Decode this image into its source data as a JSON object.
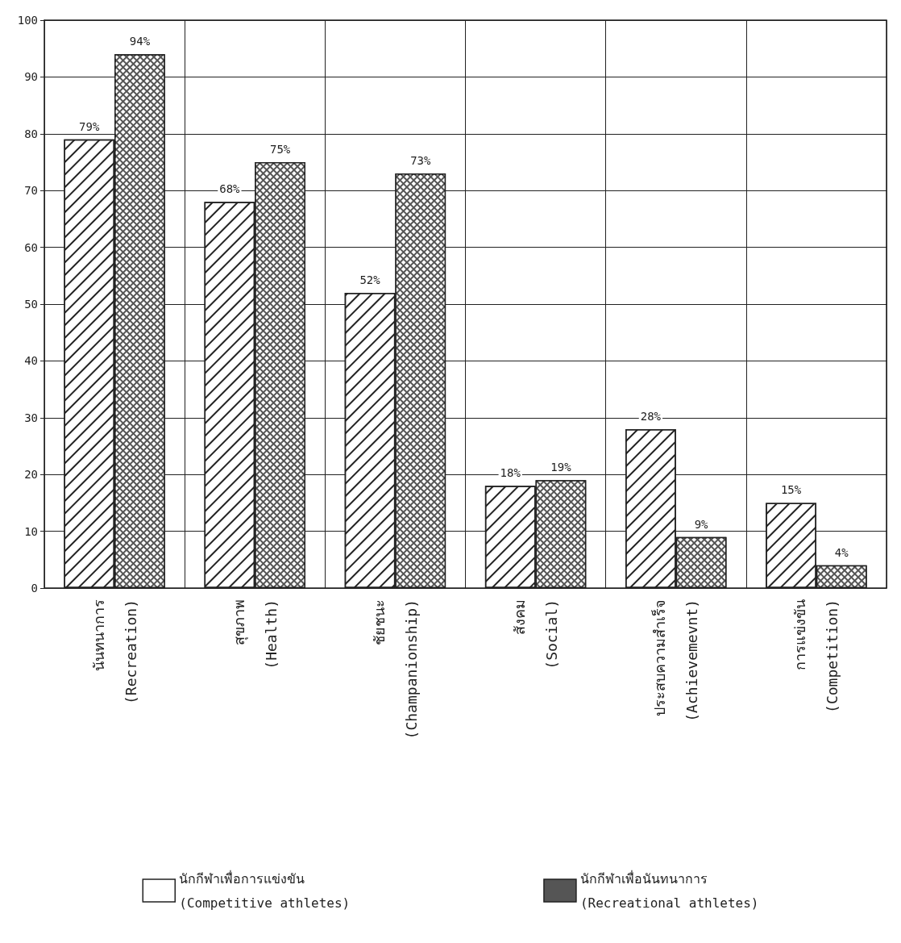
{
  "chart_data": {
    "type": "bar",
    "categories": [
      "นันทนาการ\n(Recreation)",
      "สุขภาพ\n(Health)",
      "ชัยชนะ\n(Champanionship)",
      "สังคม\n(Social)",
      "ประสบความสำเร็จ\n(Achievemevnt)",
      "การแข่งขัน\n(Competition)"
    ],
    "series": [
      {
        "name": "นักกีฬาเพื่อการแข่งขัน\n(Competitive athletes)",
        "color": "#ffffff",
        "values": [
          79,
          68,
          52,
          18,
          28,
          15
        ],
        "value_labels": [
          "79%",
          "68%",
          "52%",
          "18%",
          "28%",
          "15%"
        ]
      },
      {
        "name": "นักกีฬาเพื่อนันทนาการ\n(Recreational athletes)",
        "color": "#555555",
        "values": [
          94,
          75,
          73,
          19,
          9,
          4
        ],
        "value_labels": [
          "94%",
          "75%",
          "73%",
          "19%",
          "9%",
          "4%"
        ]
      }
    ],
    "ylim": [
      0,
      100
    ],
    "yticks": [
      0,
      10,
      20,
      30,
      40,
      50,
      60,
      70,
      80,
      90,
      100
    ],
    "grid": true,
    "legend": "bottom"
  }
}
